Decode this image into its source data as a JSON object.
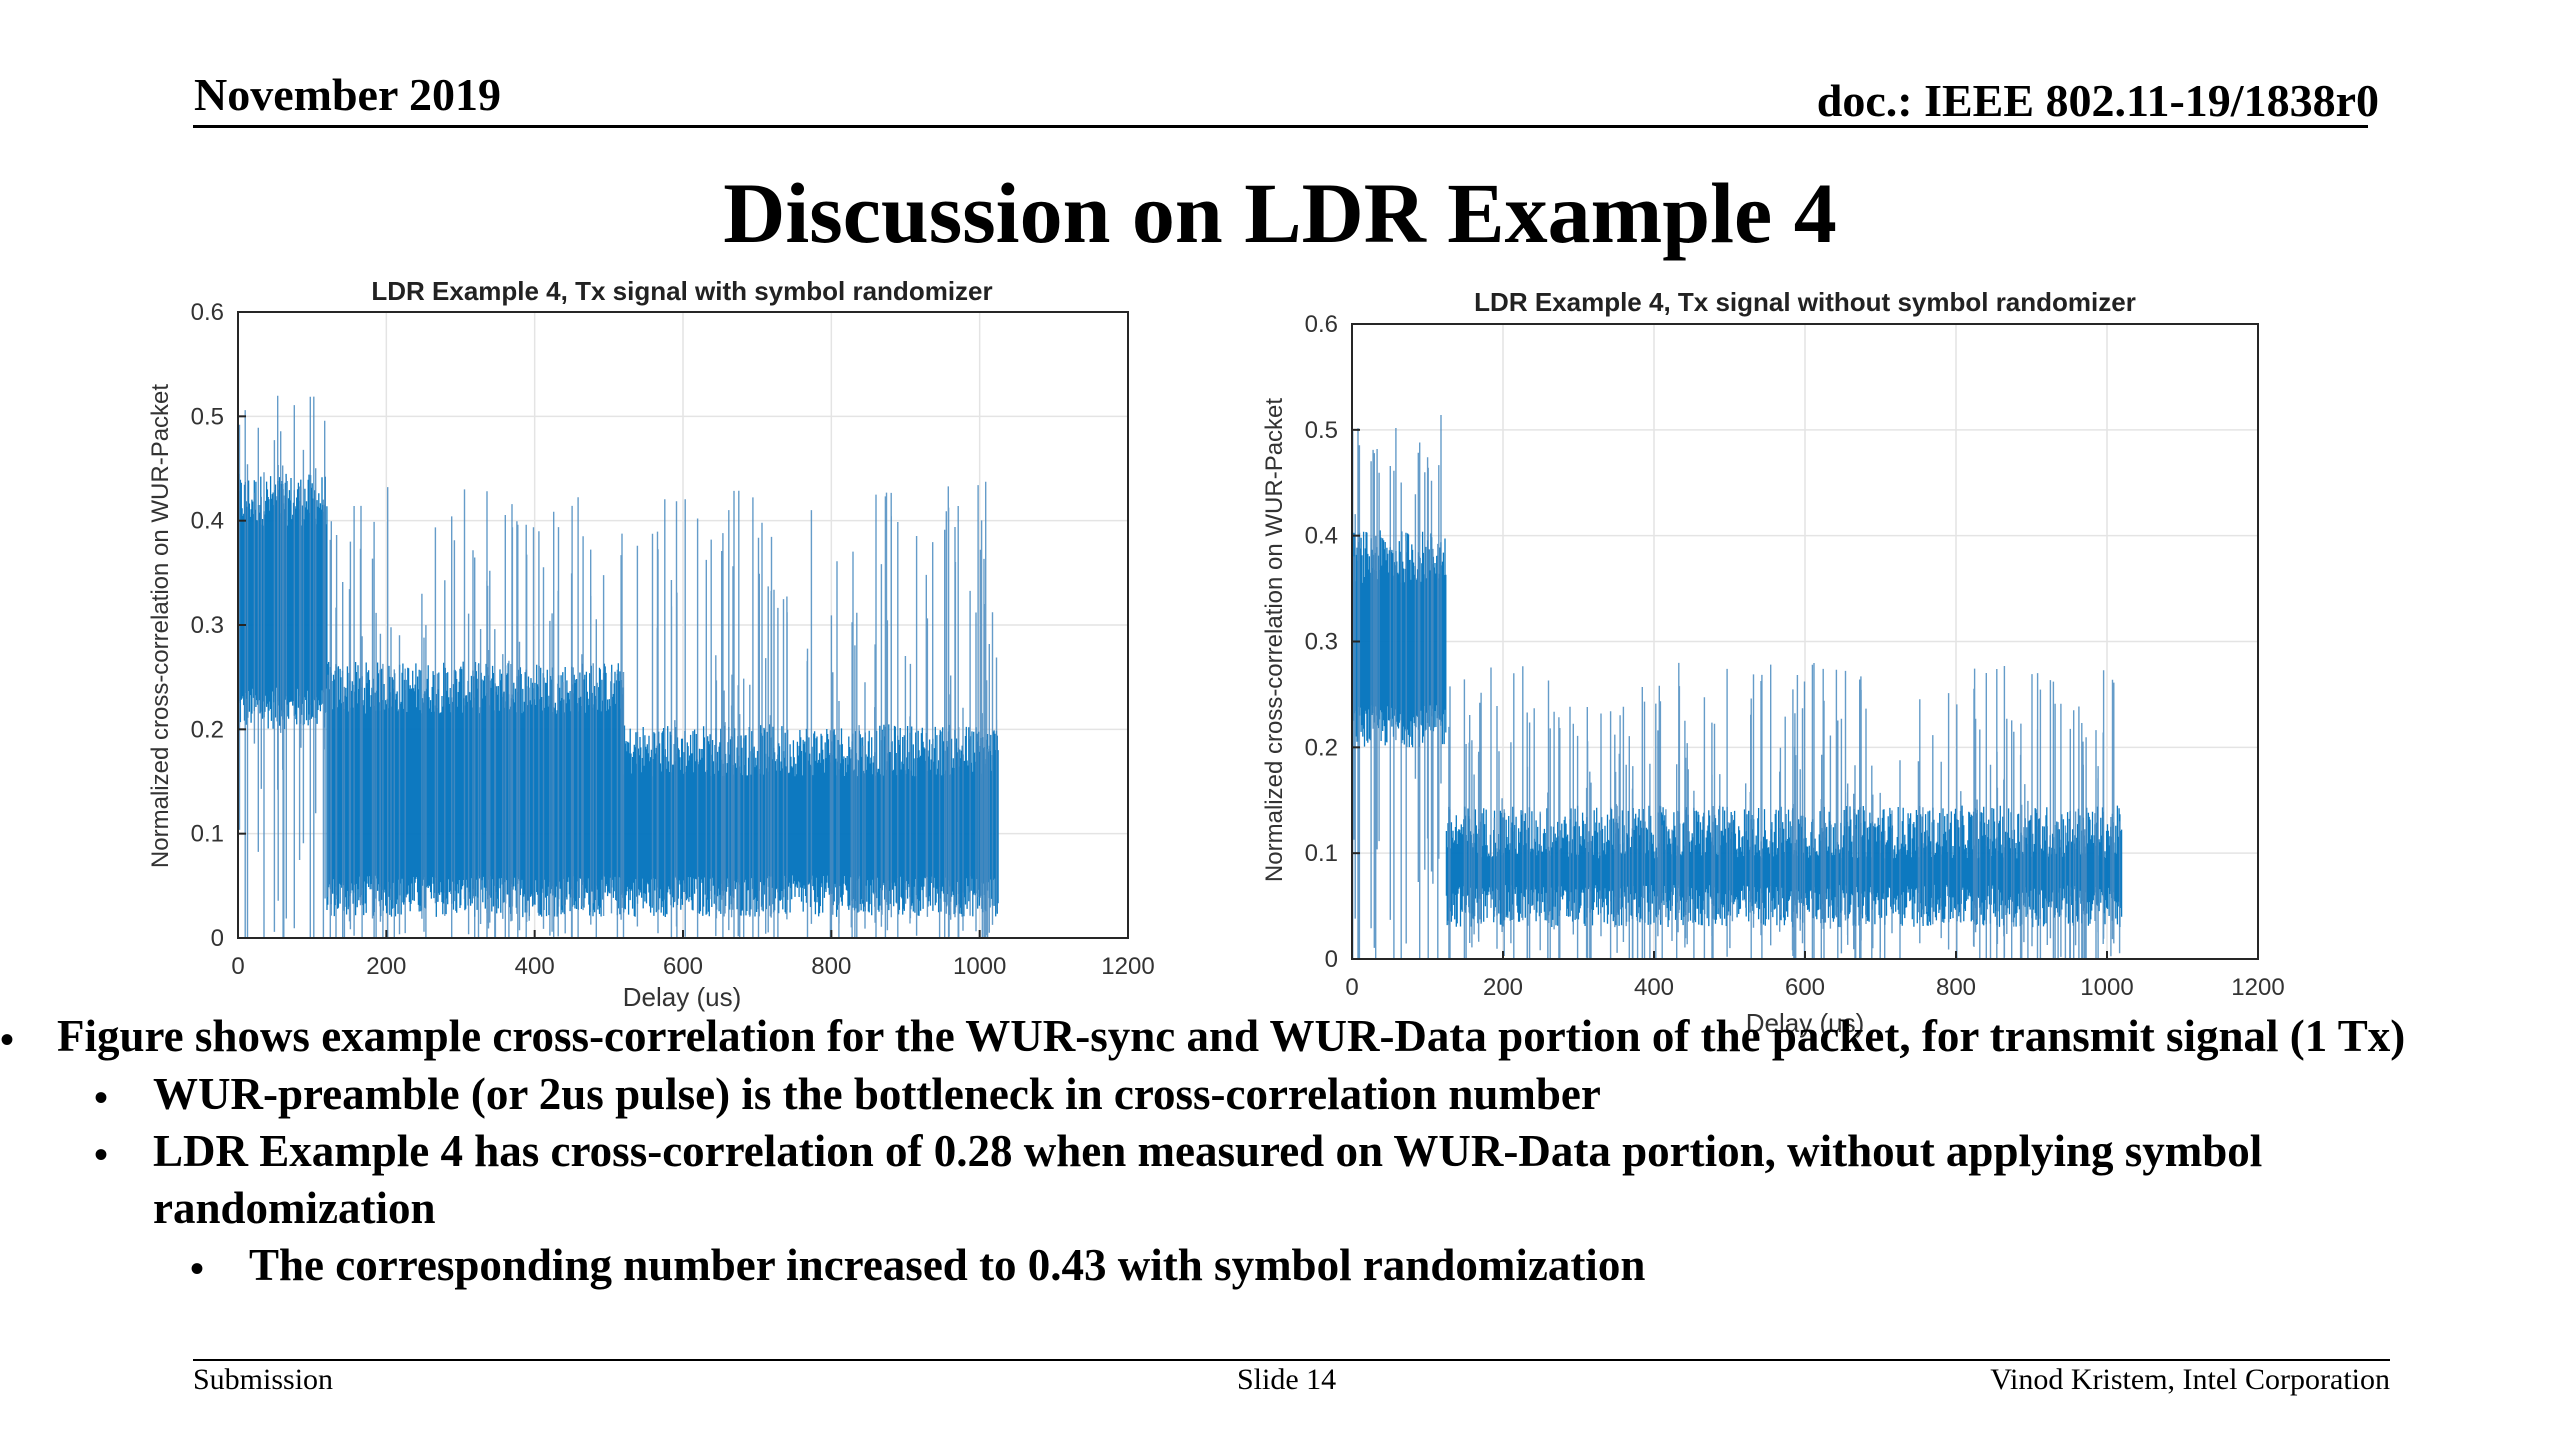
{
  "header": {
    "date": "November 2019",
    "doc_id": "doc.: IEEE 802.11-19/1838r0"
  },
  "slide_title": "Discussion on LDR Example 4",
  "chart_data": [
    {
      "type": "line",
      "title": "LDR Example 4, Tx signal with symbol randomizer",
      "xlabel": "Delay (us)",
      "ylabel": "Normalized cross-correlation on WUR-Packet",
      "xlim": [
        0,
        1200
      ],
      "ylim": [
        0,
        0.6
      ],
      "xticks": [
        "0",
        "200",
        "400",
        "600",
        "800",
        "1000",
        "1200"
      ],
      "yticks": [
        "0",
        "0.1",
        "0.2",
        "0.3",
        "0.4",
        "0.5",
        "0.6"
      ],
      "grid": true,
      "series": [
        {
          "color": "#0072BD",
          "segments": [
            {
              "x_start": 0,
              "x_end": 120,
              "core_low": 0.22,
              "core_high": 0.42,
              "peak_max": 0.52
            },
            {
              "x_start": 120,
              "x_end": 520,
              "core_low": 0.04,
              "core_high": 0.24,
              "peak_max": 0.44
            },
            {
              "x_start": 520,
              "x_end": 1025,
              "core_low": 0.04,
              "core_high": 0.18,
              "peak_max": 0.44
            }
          ]
        }
      ]
    },
    {
      "type": "line",
      "title": "LDR Example 4, Tx signal without symbol randomizer",
      "xlabel": "Delay (us)",
      "ylabel": "Normalized cross-correlation on WUR-Packet",
      "xlim": [
        0,
        1200
      ],
      "ylim": [
        0,
        0.6
      ],
      "xticks": [
        "0",
        "200",
        "400",
        "600",
        "800",
        "1000",
        "1200"
      ],
      "yticks": [
        "0",
        "0.1",
        "0.2",
        "0.3",
        "0.4",
        "0.5",
        "0.6"
      ],
      "grid": true,
      "series": [
        {
          "color": "#0072BD",
          "segments": [
            {
              "x_start": 0,
              "x_end": 125,
              "core_low": 0.22,
              "core_high": 0.38,
              "peak_max": 0.52
            },
            {
              "x_start": 125,
              "x_end": 1020,
              "core_low": 0.05,
              "core_high": 0.12,
              "peak_max": 0.28
            }
          ]
        }
      ]
    }
  ],
  "bullets": [
    {
      "level": 1,
      "marker": "•",
      "text": "Figure shows example cross-correlation for the WUR-sync and WUR-Data portion of the packet, for transmit signal (1 Tx)"
    },
    {
      "level": 2,
      "marker": "•",
      "text": "WUR-preamble (or 2us pulse) is the bottleneck in cross-correlation number"
    },
    {
      "level": 2,
      "marker": "•",
      "text": "LDR Example 4 has cross-correlation of 0.28 when measured on WUR-Data portion, without applying symbol"
    },
    {
      "level": 2,
      "marker": "",
      "text": "randomization"
    },
    {
      "level": 3,
      "marker": "•",
      "text": "The corresponding number increased to 0.43 with symbol randomization"
    }
  ],
  "footer": {
    "left": "Submission",
    "center": "Slide 14",
    "right": "Vinod Kristem, Intel Corporation"
  }
}
